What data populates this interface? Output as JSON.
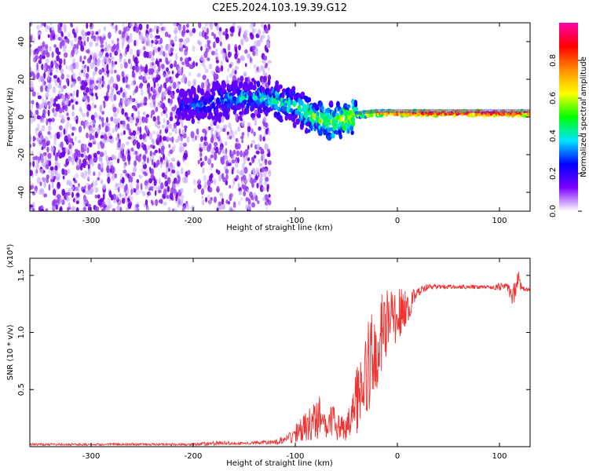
{
  "figure_title": "C2E5.2024.103.19.39.G12",
  "chart_data": [
    {
      "type": "heatmap",
      "title": "",
      "xlabel": "Height of straight line (km)",
      "ylabel": "Frequency (Hz)",
      "xlim": [
        -360,
        130
      ],
      "ylim": [
        -50,
        50
      ],
      "xticks": [
        -300,
        -200,
        -100,
        0,
        100
      ],
      "yticks": [
        -40,
        -20,
        0,
        20,
        40
      ],
      "colorbar": {
        "label": "Normalized spectral amplitude",
        "range": [
          0,
          1
        ],
        "ticks": [
          0.0,
          0.2,
          0.4,
          0.6,
          0.8
        ],
        "colors": [
          "#ffffff",
          "#7c00ff",
          "#0000ff",
          "#00e5ff",
          "#00ff00",
          "#ffff00",
          "#ff8c00",
          "#ff0000",
          "#ff00aa"
        ]
      },
      "ridge": [
        {
          "x": -210,
          "freq": 6,
          "amp": 0.25
        },
        {
          "x": -190,
          "freq": 6,
          "amp": 0.3
        },
        {
          "x": -160,
          "freq": 10,
          "amp": 0.35
        },
        {
          "x": -130,
          "freq": 10,
          "amp": 0.4
        },
        {
          "x": -100,
          "freq": 6,
          "amp": 0.45
        },
        {
          "x": -80,
          "freq": 0,
          "amp": 0.5
        },
        {
          "x": -60,
          "freq": -3,
          "amp": 0.55
        },
        {
          "x": -40,
          "freq": 1,
          "amp": 0.6
        },
        {
          "x": -20,
          "freq": 2,
          "amp": 0.8
        },
        {
          "x": 0,
          "freq": 2,
          "amp": 0.85
        },
        {
          "x": 50,
          "freq": 2,
          "amp": 0.9
        },
        {
          "x": 100,
          "freq": 2,
          "amp": 0.9
        },
        {
          "x": 130,
          "freq": 2,
          "amp": 0.85
        }
      ]
    },
    {
      "type": "line",
      "title": "",
      "xlabel": "Height of straight line (km)",
      "ylabel": "SNR (10 * v/v)",
      "yscale_label": "(x10⁴)",
      "xlim": [
        -360,
        130
      ],
      "ylim": [
        0,
        1.65
      ],
      "xticks": [
        -300,
        -200,
        -100,
        0,
        100
      ],
      "yticks": [
        0.5,
        1.0,
        1.5
      ],
      "ytick_labels": [
        "0.5",
        "1.0",
        "1.5"
      ],
      "series": [
        {
          "color": "#ee3333",
          "x": [
            -360,
            -300,
            -250,
            -200,
            -180,
            -150,
            -120,
            -105,
            -95,
            -85,
            -75,
            -70,
            -65,
            -60,
            -55,
            -50,
            -45,
            -40,
            -35,
            -30,
            -25,
            -20,
            -15,
            -10,
            -5,
            0,
            5,
            10,
            15,
            20,
            25,
            30,
            40,
            50,
            60,
            70,
            80,
            90,
            100,
            108,
            113,
            118,
            122,
            130
          ],
          "y": [
            0.02,
            0.02,
            0.02,
            0.02,
            0.03,
            0.03,
            0.04,
            0.08,
            0.15,
            0.2,
            0.25,
            0.15,
            0.3,
            0.15,
            0.2,
            0.15,
            0.25,
            0.4,
            0.5,
            0.65,
            0.8,
            0.9,
            1.0,
            1.1,
            1.1,
            1.15,
            1.18,
            1.2,
            1.3,
            1.35,
            1.38,
            1.4,
            1.4,
            1.4,
            1.4,
            1.4,
            1.4,
            1.4,
            1.4,
            1.4,
            1.3,
            1.5,
            1.38,
            1.38
          ],
          "noise": [
            0.01,
            0.01,
            0.01,
            0.01,
            0.02,
            0.01,
            0.02,
            0.05,
            0.1,
            0.15,
            0.2,
            0.08,
            0.2,
            0.1,
            0.12,
            0.1,
            0.2,
            0.3,
            0.3,
            0.4,
            0.4,
            0.4,
            0.35,
            0.3,
            0.25,
            0.25,
            0.2,
            0.15,
            0.08,
            0.04,
            0.03,
            0.03,
            0.02,
            0.02,
            0.02,
            0.02,
            0.02,
            0.02,
            0.03,
            0.04,
            0.1,
            0.1,
            0.03,
            0.02
          ]
        }
      ]
    }
  ]
}
